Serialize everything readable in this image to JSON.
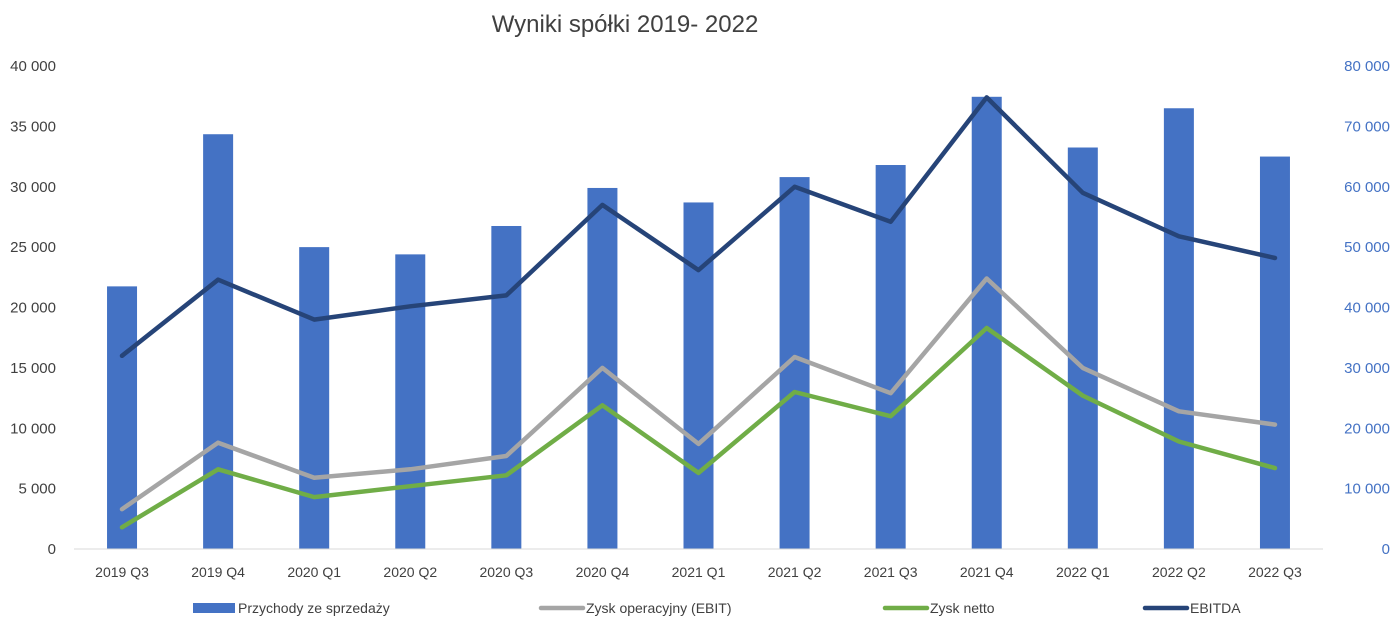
{
  "chart_data": {
    "type": "bar",
    "title": "Wyniki spółki 2019- 2022",
    "categories": [
      "2019 Q3",
      "2019 Q4",
      "2020 Q1",
      "2020 Q2",
      "2020 Q3",
      "2020 Q4",
      "2021 Q1",
      "2021 Q2",
      "2021 Q3",
      "2021 Q4",
      "2022 Q1",
      "2022 Q2",
      "2022 Q3"
    ],
    "y_left": {
      "ylim": [
        0,
        40000
      ],
      "ticks": [
        "0",
        "5 000",
        "10 000",
        "15 000",
        "20 000",
        "25 000",
        "30 000",
        "35 000",
        "40 000"
      ]
    },
    "y_right": {
      "ylim": [
        0,
        80000
      ],
      "ticks": [
        "0",
        "10 000",
        "20 000",
        "30 000",
        "40 000",
        "50 000",
        "60 000",
        "70 000",
        "80 000"
      ]
    },
    "series": [
      {
        "name": "Przychody ze sprzedaży",
        "type": "bar",
        "axis": "right",
        "color": "#4472C4",
        "values": [
          43500,
          68700,
          50000,
          48800,
          53500,
          59800,
          57400,
          61600,
          63600,
          74900,
          66500,
          73000,
          65000
        ]
      },
      {
        "name": "Zysk operacyjny (EBIT)",
        "type": "line",
        "axis": "left",
        "color": "#A5A5A5",
        "values": [
          3300,
          8800,
          5900,
          6600,
          7700,
          15000,
          8700,
          15900,
          12900,
          22400,
          15000,
          11400,
          10300
        ]
      },
      {
        "name": "Zysk netto",
        "type": "line",
        "axis": "left",
        "color": "#70AD47",
        "values": [
          1800,
          6600,
          4300,
          5200,
          6100,
          11900,
          6300,
          13000,
          11000,
          18300,
          12700,
          8900,
          6700
        ]
      },
      {
        "name": "EBITDA",
        "type": "line",
        "axis": "left",
        "color": "#264478",
        "values": [
          16000,
          22300,
          19000,
          20100,
          21000,
          28500,
          23100,
          30000,
          27100,
          37400,
          29500,
          25900,
          24100
        ]
      }
    ],
    "grid": false,
    "legend_position": "bottom"
  }
}
